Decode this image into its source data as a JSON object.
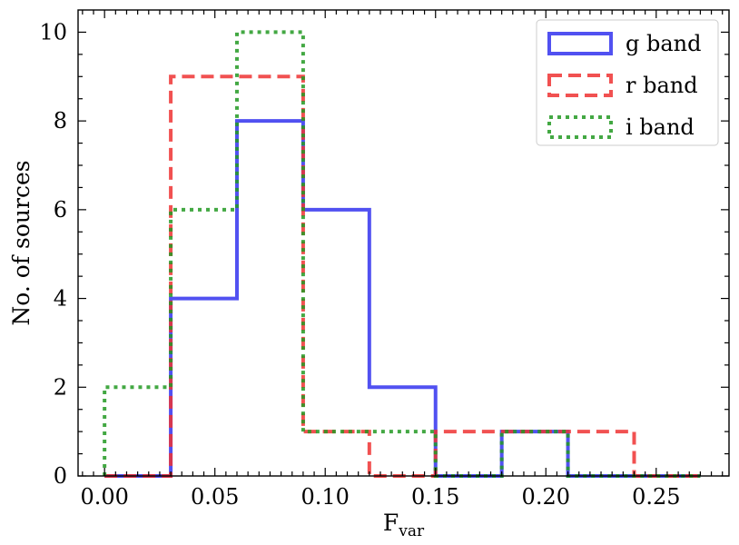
{
  "chart_data": {
    "type": "histogram",
    "bin_edges": [
      0.0,
      0.03,
      0.06,
      0.09,
      0.12,
      0.15,
      0.18,
      0.21,
      0.24,
      0.27
    ],
    "series": [
      {
        "name": "g band",
        "color": "#3333ee",
        "style": "solid",
        "values": [
          0,
          4,
          8,
          6,
          2,
          0,
          1,
          0,
          0
        ]
      },
      {
        "name": "r band",
        "color": "#ee3333",
        "style": "dashed",
        "values": [
          0,
          9,
          9,
          1,
          0,
          1,
          1,
          1,
          0
        ]
      },
      {
        "name": "i band",
        "color": "#229922",
        "style": "dotted",
        "values": [
          2,
          6,
          10,
          1,
          1,
          0,
          1,
          0,
          0
        ]
      }
    ],
    "xlabel_main": "F",
    "xlabel_sub": "var",
    "ylabel": "No. of sources",
    "xlim": [
      -0.012,
      0.283
    ],
    "ylim": [
      0,
      10.5
    ],
    "xticks": [
      0.0,
      0.05,
      0.1,
      0.15,
      0.2,
      0.25
    ],
    "xtick_labels": [
      "0.00",
      "0.05",
      "0.10",
      "0.15",
      "0.20",
      "0.25"
    ],
    "yticks": [
      0,
      2,
      4,
      6,
      8,
      10
    ],
    "ytick_labels": [
      "0",
      "2",
      "4",
      "6",
      "8",
      "10"
    ],
    "legend_position": "top-right",
    "grid": false
  }
}
